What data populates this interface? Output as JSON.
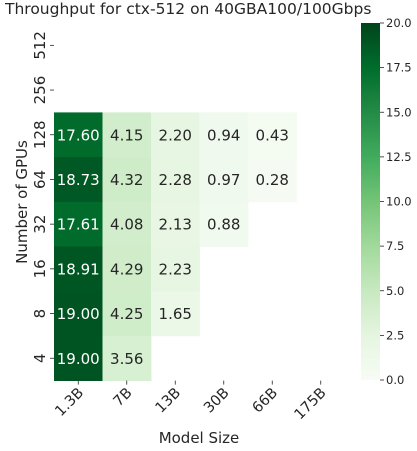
{
  "chart_data": {
    "type": "heatmap",
    "title": "Throughput  for ctx-512 on 40GBA100/100Gbps",
    "xlabel": "Model Size",
    "ylabel": "Number of GPUs",
    "x_categories": [
      "1.3B",
      "7B",
      "13B",
      "30B",
      "66B",
      "175B"
    ],
    "y_categories": [
      "512",
      "256",
      "128",
      "64",
      "32",
      "16",
      "8",
      "4"
    ],
    "values": [
      [
        null,
        null,
        null,
        null,
        null,
        null
      ],
      [
        null,
        null,
        null,
        null,
        null,
        null
      ],
      [
        17.6,
        4.15,
        2.2,
        0.94,
        0.43,
        null
      ],
      [
        18.73,
        4.32,
        2.28,
        0.97,
        0.28,
        null
      ],
      [
        17.61,
        4.08,
        2.13,
        0.88,
        null,
        null
      ],
      [
        18.91,
        4.29,
        2.23,
        null,
        null,
        null
      ],
      [
        19.0,
        4.25,
        1.65,
        null,
        null,
        null
      ],
      [
        19.0,
        3.56,
        null,
        null,
        null,
        null
      ]
    ],
    "labels": [
      [
        "",
        "",
        "",
        "",
        "",
        ""
      ],
      [
        "",
        "",
        "",
        "",
        "",
        ""
      ],
      [
        "17.60",
        "4.15",
        "2.20",
        "0.94",
        "0.43",
        ""
      ],
      [
        "18.73",
        "4.32",
        "2.28",
        "0.97",
        "0.28",
        ""
      ],
      [
        "17.61",
        "4.08",
        "2.13",
        "0.88",
        "",
        ""
      ],
      [
        "18.91",
        "4.29",
        "2.23",
        "",
        "",
        ""
      ],
      [
        "19.00",
        "4.25",
        "1.65",
        "",
        "",
        ""
      ],
      [
        "19.00",
        "3.56",
        "",
        "",
        "",
        ""
      ]
    ],
    "colorbar": {
      "range": [
        0,
        20
      ],
      "ticks": [
        "0.0",
        "2.5",
        "5.0",
        "7.5",
        "10.0",
        "12.5",
        "15.0",
        "17.5",
        "20.0"
      ],
      "colormap": "Greens"
    }
  }
}
